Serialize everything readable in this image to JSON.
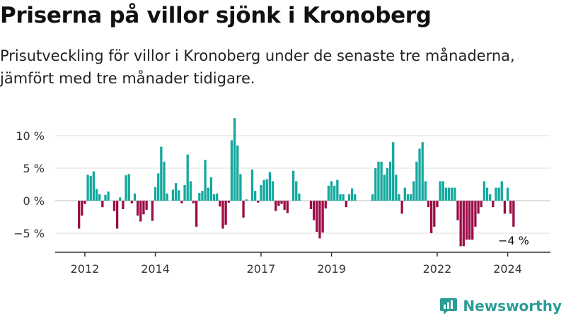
{
  "title": "Priserna på villor sjönk i Kronoberg",
  "subtitle": "Prisutveckling för villor i Kronoberg under de senaste tre månaderna, jämfört med tre månader tidigare.",
  "brand": {
    "name": "Newsworthy",
    "icon": "newsworthy-logo-icon",
    "color": "#2a9d95"
  },
  "colors": {
    "positive": "#13a89e",
    "negative": "#9b0d48",
    "grid": "#dddddd",
    "axis": "#333333"
  },
  "chart_data": {
    "type": "bar",
    "ylim": [
      -8,
      13
    ],
    "yticks": [
      -5,
      0,
      5,
      10
    ],
    "ytick_labels": [
      "−5 %",
      "0 %",
      "5 %",
      "10 %"
    ],
    "xticks": [
      {
        "month": 2,
        "label": "2012"
      },
      {
        "month": 26,
        "label": "2014"
      },
      {
        "month": 62,
        "label": "2017"
      },
      {
        "month": 86,
        "label": "2019"
      },
      {
        "month": 122,
        "label": "2022"
      },
      {
        "month": 146,
        "label": "2024"
      }
    ],
    "start": "2011-11",
    "grid": true,
    "last_label": "−4 %",
    "values": [
      -4.3,
      -2.3,
      -0.5,
      4.0,
      3.8,
      4.5,
      1.8,
      1.0,
      -1.0,
      0.9,
      1.4,
      0.0,
      -1.6,
      -4.3,
      0.5,
      -1.3,
      3.9,
      4.1,
      -0.4,
      1.1,
      -2.3,
      -3.2,
      -2.1,
      -1.4,
      0.0,
      -3.1,
      2.1,
      4.2,
      8.3,
      6.0,
      1.1,
      0.0,
      1.7,
      2.7,
      1.6,
      -0.4,
      2.4,
      7.1,
      3.0,
      -0.4,
      -4.0,
      1.2,
      1.5,
      6.3,
      2.0,
      3.6,
      1.0,
      1.1,
      -0.9,
      -4.3,
      -3.7,
      -0.3,
      9.3,
      12.7,
      8.5,
      4.1,
      -2.6,
      0.2,
      0.0,
      4.8,
      1.5,
      -0.3,
      2.4,
      3.2,
      3.3,
      4.4,
      3.0,
      -1.6,
      -0.8,
      -0.5,
      -1.4,
      -1.9,
      0.0,
      4.6,
      3.0,
      1.1,
      0.0,
      0.0,
      0.0,
      -1.3,
      -3.0,
      -4.8,
      -5.8,
      -4.9,
      -1.2,
      2.3,
      3.0,
      2.3,
      3.2,
      1.0,
      1.0,
      -1.0,
      1.0,
      1.9,
      1.0,
      0.0,
      0.0,
      0.0,
      0.0,
      0.0,
      1.0,
      5.0,
      6.0,
      6.0,
      4.0,
      5.0,
      6.0,
      9.0,
      4.0,
      1.0,
      -2.0,
      2.0,
      1.0,
      1.0,
      3.0,
      6.0,
      8.0,
      9.0,
      3.0,
      -1.0,
      -5.0,
      -4.0,
      -1.0,
      3.0,
      3.0,
      2.0,
      2.0,
      2.0,
      2.0,
      -3.0,
      -7.0,
      -7.0,
      -6.0,
      -6.0,
      -6.0,
      -4.0,
      -2.0,
      -1.0,
      3.0,
      2.0,
      1.0,
      -1.0,
      2.0,
      2.0,
      3.0,
      -2.0,
      2.0,
      -2.0,
      -4.0
    ]
  }
}
